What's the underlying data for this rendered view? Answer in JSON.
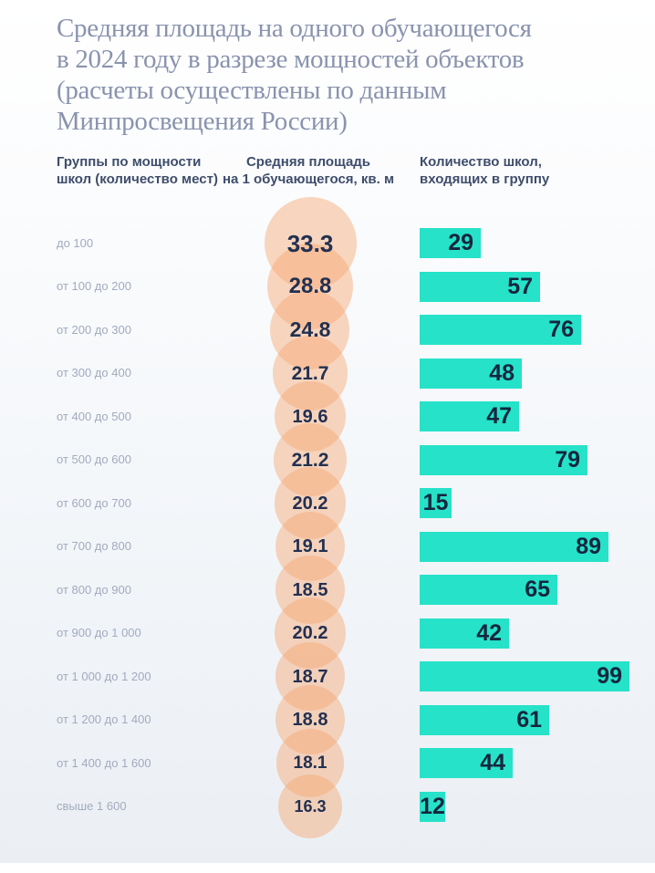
{
  "title_lines": [
    "Средняя площадь на одного обучающегося",
    "в 2024 году в разрезе мощностей объектов",
    "(расчеты осуществлены по данным",
    "Минпросвещения России)"
  ],
  "columns": [
    {
      "lines": [
        "Группы по мощности",
        "школ (количество мест)"
      ]
    },
    {
      "lines": [
        "Средняя площадь",
        "на 1 обучающегося, кв. м"
      ]
    },
    {
      "lines": [
        "Количество школ,",
        "входящих в группу"
      ]
    }
  ],
  "colors": {
    "background_bottom": "#ebeff4",
    "title": "#8a93ae",
    "header": "#3e4d6b",
    "row_label": "#a2aabe",
    "circle_fill": "rgba(246,166,112,0.45)",
    "circle_text": "#233050",
    "bar_fill": "#26e2c9",
    "bar_text": "#14263e"
  },
  "chart_data": {
    "type": "bar",
    "title": "Средняя площадь на одного обучающегося в 2024 году в разрезе мощностей объектов (расчеты осуществлены по данным Минпросвещения России)",
    "orientation": "horizontal",
    "grid": false,
    "legend_position": "none",
    "categories": [
      "до 100",
      "от 100 до 200",
      "от 200 до 300",
      "от 300 до 400",
      "от 400 до 500",
      "от 500 до 600",
      "от 600 до 700",
      "от 700 до 800",
      "от 800 до 900",
      "от 900 до 1 000",
      "от 1 000 до 1 200",
      "от 1 200 до 1 400",
      "от 1 400 до 1 600",
      "свыше 1 600"
    ],
    "categories_axis_label": "Группы по мощности школ (количество мест)",
    "series": [
      {
        "name": "Средняя площадь на 1 обучающегося, кв. м",
        "mark": "circle-area",
        "values": [
          33.3,
          28.8,
          24.8,
          21.7,
          19.6,
          21.2,
          20.2,
          19.1,
          18.5,
          20.2,
          18.7,
          18.8,
          18.1,
          16.3
        ]
      },
      {
        "name": "Количество школ, входящих в группу",
        "mark": "bar",
        "values": [
          29,
          57,
          76,
          48,
          47,
          79,
          15,
          89,
          65,
          42,
          99,
          61,
          44,
          12
        ],
        "xlim": [
          0,
          99
        ]
      }
    ]
  }
}
